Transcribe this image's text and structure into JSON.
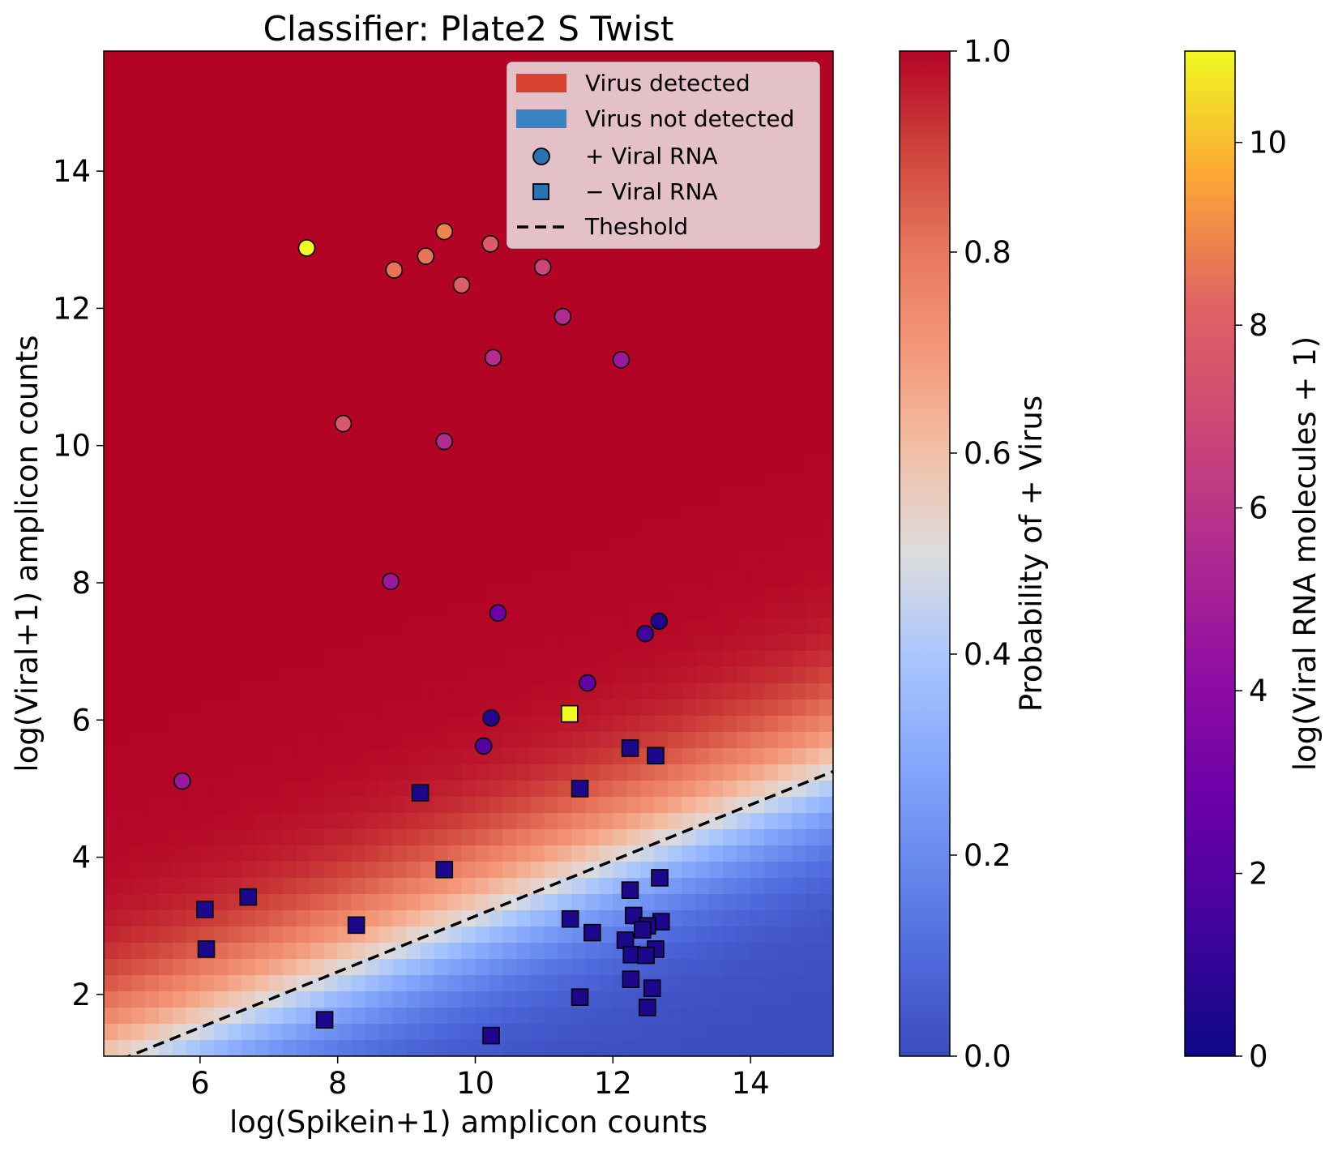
{
  "chart_data": {
    "type": "scatter",
    "title": "Classifier: Plate2 S Twist",
    "xlabel": "log(Spikein+1) amplicon counts",
    "ylabel": "log(Viral+1) amplicon counts",
    "xlim": [
      4.6,
      15.2
    ],
    "ylim": [
      1.1,
      15.75
    ],
    "xticks": [
      "6",
      "8",
      "10",
      "12",
      "14"
    ],
    "yticks": [
      "2",
      "4",
      "6",
      "8",
      "10",
      "12",
      "14"
    ],
    "background": "logistic probability surface, red = virus detected, blue = virus not detected",
    "threshold_line": {
      "style": "dashed",
      "x": [
        4.6,
        15.2
      ],
      "y": [
        0.95,
        5.25
      ]
    },
    "legend": {
      "position": "upper right",
      "entries": [
        {
          "label": "Virus detected",
          "kind": "patch",
          "color": "#d7412f"
        },
        {
          "label": "Virus not detected",
          "kind": "patch",
          "color": "#3a84c4"
        },
        {
          "label": "+ Viral RNA",
          "kind": "circle",
          "color": "#2b72b5"
        },
        {
          "label": "− Viral RNA",
          "kind": "square",
          "color": "#2b72b5"
        },
        {
          "label": "Theshold",
          "kind": "dashed-line",
          "color": "#000000"
        }
      ]
    },
    "series": [
      {
        "name": "+ Viral RNA",
        "marker": "circle",
        "points": [
          {
            "x": 7.55,
            "y": 12.88,
            "c": 11.0
          },
          {
            "x": 8.82,
            "y": 12.56,
            "c": 8.6
          },
          {
            "x": 9.28,
            "y": 12.76,
            "c": 8.6
          },
          {
            "x": 9.55,
            "y": 13.12,
            "c": 8.9
          },
          {
            "x": 10.22,
            "y": 12.94,
            "c": 7.8
          },
          {
            "x": 9.8,
            "y": 12.34,
            "c": 8.0
          },
          {
            "x": 10.98,
            "y": 12.6,
            "c": 6.8
          },
          {
            "x": 11.27,
            "y": 11.88,
            "c": 5.5
          },
          {
            "x": 10.26,
            "y": 11.28,
            "c": 5.6
          },
          {
            "x": 12.12,
            "y": 11.25,
            "c": 4.7
          },
          {
            "x": 8.08,
            "y": 10.32,
            "c": 7.7
          },
          {
            "x": 9.55,
            "y": 10.06,
            "c": 5.6
          },
          {
            "x": 8.77,
            "y": 8.02,
            "c": 4.6
          },
          {
            "x": 10.33,
            "y": 7.56,
            "c": 2.8
          },
          {
            "x": 12.67,
            "y": 7.44,
            "c": 0.5
          },
          {
            "x": 12.47,
            "y": 7.26,
            "c": 1.3
          },
          {
            "x": 11.63,
            "y": 6.54,
            "c": 2.5
          },
          {
            "x": 10.23,
            "y": 6.03,
            "c": 0.6
          },
          {
            "x": 10.12,
            "y": 5.62,
            "c": 2.0
          },
          {
            "x": 5.74,
            "y": 5.11,
            "c": 4.6
          }
        ]
      },
      {
        "name": "− Viral RNA",
        "marker": "square",
        "points": [
          {
            "x": 11.37,
            "y": 6.09,
            "c": 11.0
          },
          {
            "x": 12.25,
            "y": 5.59,
            "c": 0.4
          },
          {
            "x": 12.62,
            "y": 5.48,
            "c": 0.4
          },
          {
            "x": 9.2,
            "y": 4.94,
            "c": 0.4
          },
          {
            "x": 11.52,
            "y": 5.0,
            "c": 0.4
          },
          {
            "x": 9.55,
            "y": 3.82,
            "c": 0.4
          },
          {
            "x": 12.68,
            "y": 3.7,
            "c": 0.4
          },
          {
            "x": 12.25,
            "y": 3.52,
            "c": 0.4
          },
          {
            "x": 6.7,
            "y": 3.42,
            "c": 0.4
          },
          {
            "x": 6.07,
            "y": 3.24,
            "c": 0.4
          },
          {
            "x": 12.3,
            "y": 3.15,
            "c": 0.4
          },
          {
            "x": 11.38,
            "y": 3.1,
            "c": 0.4
          },
          {
            "x": 12.7,
            "y": 3.06,
            "c": 0.4
          },
          {
            "x": 12.5,
            "y": 3.0,
            "c": 0.4
          },
          {
            "x": 8.27,
            "y": 3.01,
            "c": 0.4
          },
          {
            "x": 12.43,
            "y": 2.94,
            "c": 0.4
          },
          {
            "x": 11.7,
            "y": 2.9,
            "c": 0.4
          },
          {
            "x": 12.18,
            "y": 2.79,
            "c": 0.4
          },
          {
            "x": 6.09,
            "y": 2.66,
            "c": 0.4
          },
          {
            "x": 12.62,
            "y": 2.66,
            "c": 0.4
          },
          {
            "x": 12.27,
            "y": 2.58,
            "c": 0.4
          },
          {
            "x": 12.48,
            "y": 2.57,
            "c": 0.4
          },
          {
            "x": 12.26,
            "y": 2.22,
            "c": 0.4
          },
          {
            "x": 12.57,
            "y": 2.09,
            "c": 0.4
          },
          {
            "x": 11.52,
            "y": 1.96,
            "c": 0.4
          },
          {
            "x": 12.5,
            "y": 1.81,
            "c": 0.4
          },
          {
            "x": 7.81,
            "y": 1.63,
            "c": 0.4
          },
          {
            "x": 10.23,
            "y": 1.4,
            "c": 0.4
          }
        ]
      }
    ],
    "colorbars": [
      {
        "label": "Probability of + Virus",
        "cmap": "coolwarm",
        "range": [
          0,
          1
        ],
        "ticks": [
          "0.0",
          "0.2",
          "0.4",
          "0.6",
          "0.8",
          "1.0"
        ]
      },
      {
        "label": "log(Viral RNA molecules + 1)",
        "cmap": "plasma",
        "range": [
          0,
          11
        ],
        "ticks": [
          "0",
          "2",
          "4",
          "6",
          "8",
          "10"
        ]
      }
    ]
  }
}
